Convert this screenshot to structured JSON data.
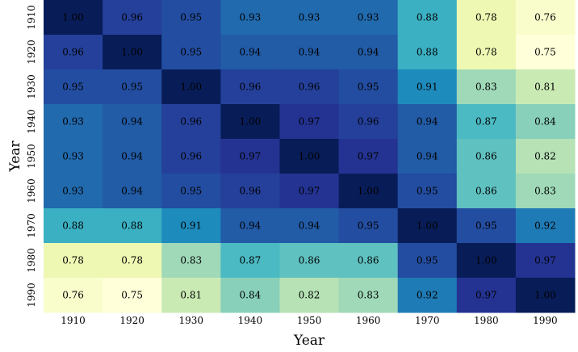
{
  "chart_data": {
    "type": "heatmap",
    "title": "",
    "xlabel": "Year",
    "ylabel": "Year",
    "x_categories": [
      "1910",
      "1920",
      "1930",
      "1940",
      "1950",
      "1960",
      "1970",
      "1980",
      "1990"
    ],
    "y_categories": [
      "1910",
      "1920",
      "1930",
      "1940",
      "1950",
      "1960",
      "1970",
      "1980",
      "1990"
    ],
    "values": [
      [
        1.0,
        0.96,
        0.95,
        0.93,
        0.93,
        0.93,
        0.88,
        0.78,
        0.76
      ],
      [
        0.96,
        1.0,
        0.95,
        0.94,
        0.94,
        0.94,
        0.88,
        0.78,
        0.75
      ],
      [
        0.95,
        0.95,
        1.0,
        0.96,
        0.96,
        0.95,
        0.91,
        0.83,
        0.81
      ],
      [
        0.93,
        0.94,
        0.96,
        1.0,
        0.97,
        0.96,
        0.94,
        0.87,
        0.84
      ],
      [
        0.93,
        0.94,
        0.96,
        0.97,
        1.0,
        0.97,
        0.94,
        0.86,
        0.82
      ],
      [
        0.93,
        0.94,
        0.95,
        0.96,
        0.97,
        1.0,
        0.95,
        0.86,
        0.83
      ],
      [
        0.88,
        0.88,
        0.91,
        0.94,
        0.94,
        0.95,
        1.0,
        0.95,
        0.92
      ],
      [
        0.78,
        0.78,
        0.83,
        0.87,
        0.86,
        0.86,
        0.95,
        1.0,
        0.97
      ],
      [
        0.76,
        0.75,
        0.81,
        0.84,
        0.82,
        0.83,
        0.92,
        0.97,
        1.0
      ]
    ],
    "value_format": "2 decimals",
    "color_scale": {
      "name": "YlGnBu",
      "vmin": 0.75,
      "vmax": 1.0,
      "stops": [
        "#ffffd9",
        "#edf8b1",
        "#c7e9b4",
        "#7fcdbb",
        "#41b6c4",
        "#1d91c0",
        "#225ea8",
        "#253494",
        "#081d58"
      ]
    },
    "colorbar": false,
    "grid": false
  }
}
